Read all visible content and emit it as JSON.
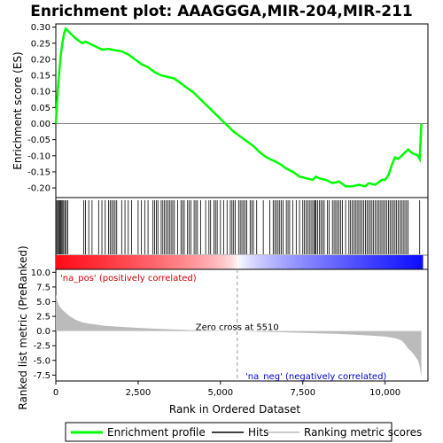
{
  "chart_data": {
    "type": "line",
    "title": "Enrichment plot: AAAGGGA,MIR-204,MIR-211",
    "xlabel": "Rank in Ordered Dataset",
    "ylabel_top": "Enrichment score (ES)",
    "ylabel_bottom": "Ranked list metric (PreRanked)",
    "xlim": [
      0,
      11300
    ],
    "x_ticks": [
      0,
      2500,
      5000,
      7500,
      10000
    ],
    "x_tick_labels": [
      "0",
      "2,500",
      "5,000",
      "7,500",
      "10,000"
    ],
    "es_ylim": [
      -0.23,
      0.31
    ],
    "es_ticks": [
      0.3,
      0.25,
      0.2,
      0.15,
      0.1,
      0.05,
      0.0,
      -0.05,
      -0.1,
      -0.15,
      -0.2
    ],
    "es_tick_labels": [
      "0.30",
      "0.25",
      "0.20",
      "0.15",
      "0.10",
      "0.05",
      "0.00",
      "-0.05",
      "-0.10",
      "-0.15",
      "-0.20"
    ],
    "metric_ylim": [
      -8.5,
      10.5
    ],
    "metric_ticks": [
      10.0,
      7.5,
      5.0,
      2.5,
      0.0,
      -2.5,
      -5.0,
      -7.5
    ],
    "metric_tick_labels": [
      "10.0",
      "7.5",
      "5.0",
      "2.5",
      "0.0",
      "-2.5",
      "-5.0",
      "-7.5"
    ],
    "es_profile": {
      "name": "Enrichment profile",
      "color": "#00ff00",
      "x": [
        0,
        40,
        80,
        120,
        160,
        200,
        250,
        300,
        350,
        450,
        600,
        800,
        900,
        1000,
        1200,
        1400,
        1600,
        1800,
        2000,
        2200,
        2400,
        2600,
        2800,
        3000,
        3200,
        3400,
        3600,
        3800,
        4000,
        4200,
        4400,
        4600,
        4800,
        5000,
        5200,
        5400,
        5600,
        5800,
        6000,
        6200,
        6400,
        6600,
        6800,
        7000,
        7200,
        7400,
        7600,
        7800,
        7900,
        8000,
        8200,
        8400,
        8600,
        8800,
        9000,
        9200,
        9400,
        9500,
        9700,
        9900,
        10000,
        10100,
        10200,
        10300,
        10400,
        10500,
        10600,
        10700,
        10800,
        11000,
        11050,
        11100
      ],
      "values": [
        0.0,
        0.07,
        0.13,
        0.18,
        0.22,
        0.25,
        0.28,
        0.295,
        0.29,
        0.28,
        0.265,
        0.25,
        0.255,
        0.25,
        0.24,
        0.23,
        0.232,
        0.228,
        0.225,
        0.215,
        0.2,
        0.185,
        0.175,
        0.16,
        0.15,
        0.145,
        0.14,
        0.125,
        0.11,
        0.095,
        0.075,
        0.055,
        0.035,
        0.015,
        -0.005,
        -0.025,
        -0.04,
        -0.055,
        -0.07,
        -0.09,
        -0.105,
        -0.115,
        -0.125,
        -0.14,
        -0.15,
        -0.165,
        -0.17,
        -0.175,
        -0.165,
        -0.17,
        -0.175,
        -0.185,
        -0.18,
        -0.195,
        -0.195,
        -0.19,
        -0.195,
        -0.185,
        -0.19,
        -0.175,
        -0.175,
        -0.16,
        -0.13,
        -0.105,
        -0.11,
        -0.1,
        -0.09,
        -0.08,
        -0.09,
        -0.1,
        -0.11,
        0.0
      ]
    },
    "zero_cross": {
      "rank": 5510,
      "label": "Zero cross at 5510"
    },
    "annotations": {
      "pos": "'na_pos' (positively correlated)",
      "neg": "'na_neg' (negatively correlated)"
    },
    "legend": {
      "position": "bottom",
      "items": [
        {
          "label": "Enrichment profile",
          "color": "#00ff00"
        },
        {
          "label": "Hits",
          "color": "#000000"
        },
        {
          "label": "Ranking metric scores",
          "color": "#bbbbbb"
        }
      ]
    },
    "hits": [
      30,
      60,
      90,
      120,
      150,
      180,
      210,
      240,
      280,
      320,
      360,
      850,
      900,
      1000,
      1100,
      1300,
      1400,
      1500,
      1600,
      1650,
      1700,
      1750,
      1800,
      1850,
      2000,
      2100,
      2200,
      2300,
      2500,
      2600,
      2700,
      2800,
      2950,
      3000,
      3050,
      3100,
      3200,
      3250,
      3300,
      3350,
      3400,
      3450,
      3500,
      3550,
      3600,
      3700,
      3800,
      3850,
      3900,
      4000,
      4050,
      4100,
      4200,
      4250,
      4300,
      4400,
      4550,
      4650,
      4700,
      4800,
      4850,
      4900,
      5000,
      5100,
      5200,
      5300,
      5350,
      5400,
      5450,
      5550,
      5600,
      5650,
      5700,
      5750,
      5800,
      5900,
      5950,
      6000,
      6100,
      6300,
      6500,
      6600,
      6650,
      6700,
      6750,
      6800,
      6850,
      6900,
      7000,
      7050,
      7100,
      7200,
      7300,
      7400,
      7500,
      7550,
      7600,
      7650,
      7700,
      7750,
      7800,
      7850,
      7880,
      7900,
      7950,
      8000,
      8050,
      8100,
      8150,
      8250,
      8300,
      8400,
      8450,
      8500,
      8550,
      8600,
      8650,
      8700,
      8800,
      8900,
      8950,
      9000,
      9050,
      9100,
      9150,
      9200,
      9250,
      9300,
      9350,
      9400,
      9450,
      9500,
      9550,
      9600,
      9650,
      9700,
      9750,
      9800,
      9850,
      9900,
      9950,
      10000,
      10050,
      10100,
      10150,
      10200,
      10250,
      10300,
      10350,
      10400,
      10450,
      10500,
      10550,
      10600,
      10650,
      10700,
      11050
    ],
    "metric_curve": {
      "name": "Ranking metric scores",
      "color": "#bbbbbb",
      "x": [
        0,
        50,
        100,
        200,
        300,
        400,
        600,
        800,
        1000,
        1500,
        2000,
        2500,
        3000,
        3500,
        4000,
        4500,
        5000,
        5510,
        6000,
        6500,
        7000,
        7500,
        8000,
        8500,
        9000,
        9500,
        10000,
        10300,
        10500,
        10600,
        10700,
        10800,
        10900,
        11000,
        11050,
        11100
      ],
      "values": [
        6.2,
        5.0,
        4.3,
        3.6,
        3.1,
        2.6,
        1.9,
        1.5,
        1.25,
        0.9,
        0.7,
        0.55,
        0.4,
        0.28,
        0.18,
        0.1,
        0.05,
        0.0,
        -0.08,
        -0.15,
        -0.22,
        -0.3,
        -0.38,
        -0.48,
        -0.6,
        -0.75,
        -0.95,
        -1.2,
        -1.6,
        -2.2,
        -3.0,
        -3.5,
        -4.2,
        -5.0,
        -6.0,
        -7.8
      ]
    },
    "colors": {
      "pos_band": "#ff0000",
      "neg_band": "#0000ff",
      "hits": "#000000",
      "zero_line": "#999999"
    }
  }
}
